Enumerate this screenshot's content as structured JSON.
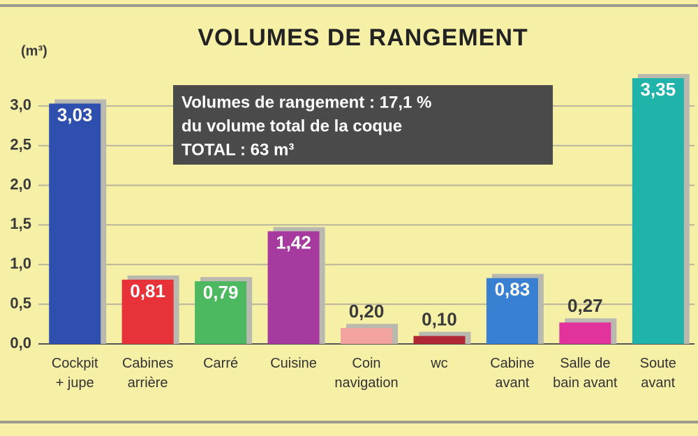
{
  "chart_data": {
    "type": "bar",
    "title": "VOLUMES DE RANGEMENT",
    "y_label": "(m³)",
    "categories": [
      "Cockpit\n+ jupe",
      "Cabines\narrière",
      "Carré",
      "Cuisine",
      "Coin\nnavigation",
      "wc",
      "Cabine\navant",
      "Salle de\nbain avant",
      "Soute\navant"
    ],
    "values": [
      3.03,
      0.81,
      0.79,
      1.42,
      0.2,
      0.1,
      0.83,
      0.27,
      3.35
    ],
    "value_labels": [
      "3,03",
      "0,81",
      "0,79",
      "1,42",
      "0,20",
      "0,10",
      "0,83",
      "0,27",
      "3,35"
    ],
    "colors": [
      "#2f4fae",
      "#e8323a",
      "#4cb860",
      "#a63a9e",
      "#f2a3a0",
      "#b02634",
      "#3a80d2",
      "#e2329c",
      "#1fb3aa"
    ],
    "ylim": [
      0,
      3.5
    ],
    "yticks": [
      {
        "value": 0,
        "label": "0,0"
      },
      {
        "value": 0.5,
        "label": "0,5"
      },
      {
        "value": 1,
        "label": "1,0"
      },
      {
        "value": 1.5,
        "label": "1,5"
      },
      {
        "value": 2,
        "label": "2,0"
      },
      {
        "value": 2.5,
        "label": "2,5"
      },
      {
        "value": 3,
        "label": "3,0"
      }
    ],
    "grid": true,
    "annotation": [
      "Volumes de rangement : 17,1 %",
      "du volume total de la coque",
      "TOTAL : 63 m³"
    ]
  }
}
